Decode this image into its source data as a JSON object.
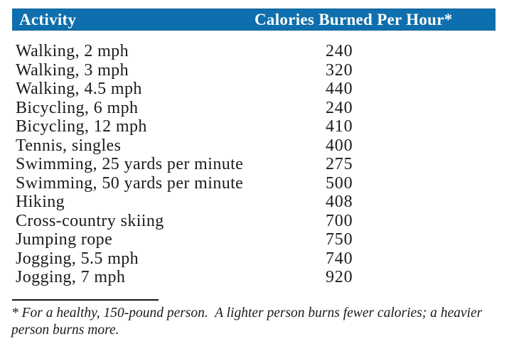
{
  "header": {
    "activity_label": "Activity",
    "calories_label": "Calories Burned Per Hour*",
    "bar_color": "#0e6fae",
    "text_color": "#fdfdfa"
  },
  "table": {
    "rows": [
      {
        "activity": "Walking, 2 mph",
        "calories": "240"
      },
      {
        "activity": "Walking, 3 mph",
        "calories": "320"
      },
      {
        "activity": "Walking, 4.5 mph",
        "calories": "440"
      },
      {
        "activity": "Bicycling, 6 mph",
        "calories": "240"
      },
      {
        "activity": "Bicycling, 12 mph",
        "calories": "410"
      },
      {
        "activity": "Tennis, singles",
        "calories": "400"
      },
      {
        "activity": "Swimming, 25 yards per minute",
        "calories": "275"
      },
      {
        "activity": "Swimming, 50 yards per minute",
        "calories": "500"
      },
      {
        "activity": "Hiking",
        "calories": "408"
      },
      {
        "activity": "Cross-country skiing",
        "calories": "700"
      },
      {
        "activity": "Jumping rope",
        "calories": "750"
      },
      {
        "activity": "Jogging, 5.5 mph",
        "calories": "740"
      },
      {
        "activity": "Jogging, 7 mph",
        "calories": "920"
      }
    ]
  },
  "footnote": {
    "text": "* For a healthy, 150-pound person.  A lighter person burns fewer calories; a heavier person burns more."
  },
  "colors": {
    "accent_blue": "#0e6fae",
    "body_text": "#1b1b1c",
    "background": "#ffffff"
  },
  "chart_data": {
    "type": "table",
    "columns": [
      "Activity",
      "Calories Burned Per Hour*"
    ],
    "rows": [
      [
        "Walking, 2 mph",
        240
      ],
      [
        "Walking, 3 mph",
        320
      ],
      [
        "Walking, 4.5 mph",
        440
      ],
      [
        "Bicycling, 6 mph",
        240
      ],
      [
        "Bicycling, 12 mph",
        410
      ],
      [
        "Tennis, singles",
        400
      ],
      [
        "Swimming, 25 yards per minute",
        275
      ],
      [
        "Swimming, 50 yards per minute",
        500
      ],
      [
        "Hiking",
        408
      ],
      [
        "Cross-country skiing",
        700
      ],
      [
        "Jumping rope",
        750
      ],
      [
        "Jogging, 5.5 mph",
        740
      ],
      [
        "Jogging, 7 mph",
        920
      ]
    ],
    "footnote": "* For a healthy, 150-pound person.  A lighter person burns fewer calories; a heavier person burns more."
  }
}
